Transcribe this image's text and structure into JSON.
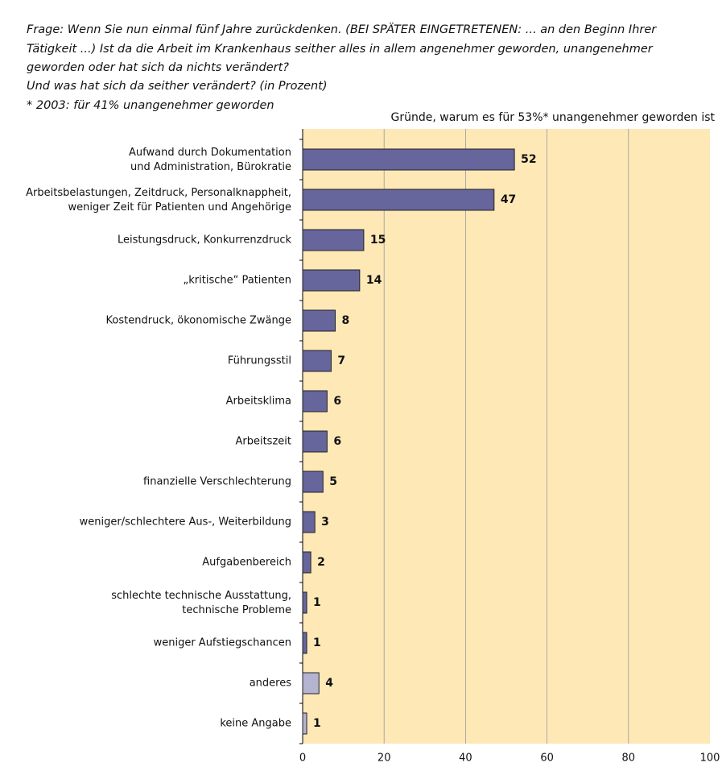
{
  "chart_data": {
    "type": "bar",
    "question": [
      "Frage: Wenn Sie nun einmal fünf Jahre zurückdenken. (BEI SPÄTER EINGETRETENEN: ... an den Beginn Ihrer",
      "Tätigkeit ...) Ist da die Arbeit im Krankenhaus seither alles in allem angenehmer geworden, unangenehmer",
      "geworden oder hat sich da nichts verändert?",
      "Und was hat sich da seither verändert? (in Prozent)"
    ],
    "footnote": "* 2003: für 41% unangenehmer geworden",
    "subtitle": "Gründe, warum es für 53%* unangenehmer geworden ist",
    "categories": [
      "Aufwand durch Dokumentation\nund Administration, Bürokratie",
      "Arbeitsbelastungen, Zeitdruck, Personalknappheit,\nweniger Zeit für Patienten und Angehörige",
      "Leistungsdruck, Konkurrenzdruck",
      "„kritische“ Patienten",
      "Kostendruck, ökonomische Zwänge",
      "Führungsstil",
      "Arbeitsklima",
      "Arbeitszeit",
      "finanzielle Verschlechterung",
      "weniger/schlechtere Aus-, Weiterbildung",
      "Aufgabenbereich",
      "schlechte technische Ausstattung,\ntechnische Probleme",
      "weniger Aufstiegschancen",
      "anderes",
      "keine Angabe"
    ],
    "values": [
      52,
      47,
      15,
      14,
      8,
      7,
      6,
      6,
      5,
      3,
      2,
      1,
      1,
      4,
      1
    ],
    "colors": [
      "#66659c",
      "#66659c",
      "#66659c",
      "#66659c",
      "#66659c",
      "#66659c",
      "#66659c",
      "#66659c",
      "#66659c",
      "#66659c",
      "#66659c",
      "#66659c",
      "#66659c",
      "#b4b3d0",
      "#b4b3d0"
    ],
    "xlim": [
      0,
      100
    ],
    "xticks": [
      0,
      20,
      40,
      60,
      80,
      100
    ],
    "grid": true
  }
}
